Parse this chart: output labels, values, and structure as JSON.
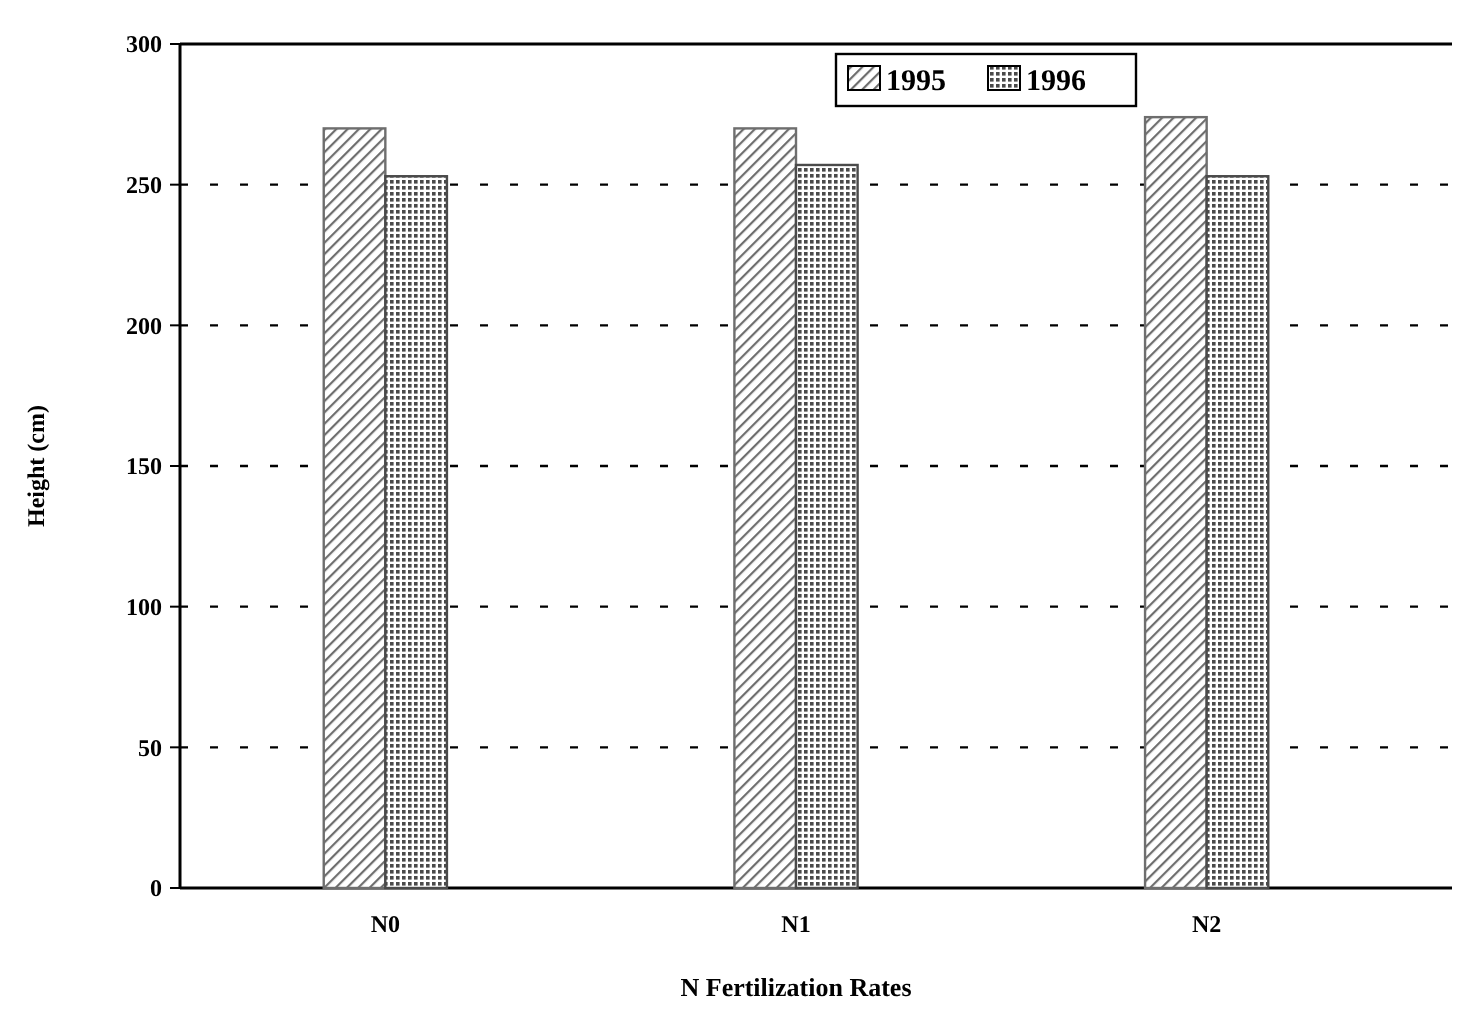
{
  "chart_data": {
    "type": "bar",
    "xlabel": "N Fertilization Rates",
    "ylabel": "Height (cm)",
    "categories": [
      "N0",
      "N1",
      "N2"
    ],
    "series": [
      {
        "name": "1995",
        "color": "#6e6e6e",
        "values": [
          270,
          270,
          274
        ]
      },
      {
        "name": "1996",
        "color": "#4a4a4a",
        "values": [
          253,
          257,
          253
        ]
      }
    ],
    "ylim": [
      0,
      300
    ],
    "yticks": [
      0,
      50,
      100,
      150,
      200,
      250,
      300
    ],
    "grid": "y",
    "legend": "top right"
  }
}
